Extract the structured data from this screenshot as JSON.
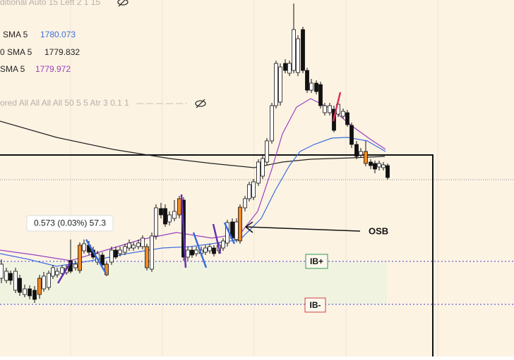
{
  "legend": {
    "line1": "ditional Auto 15 Left 2 1 15",
    "sma_blue": {
      "label": "SMA 5",
      "value": "1780.073"
    },
    "sma_black": {
      "label": "0 SMA 5",
      "value": "1779.832"
    },
    "sma_purple": {
      "label": "SMA 5",
      "value": "1779.972"
    },
    "line5": "ored All All All All 50 5 5 Atr 3 0.1 1"
  },
  "tooltip": "0.573 (0.03%) 57.3",
  "annotations": {
    "osb": "OSB",
    "ib_plus": "IB+",
    "ib_minus": "IB-"
  }
}
